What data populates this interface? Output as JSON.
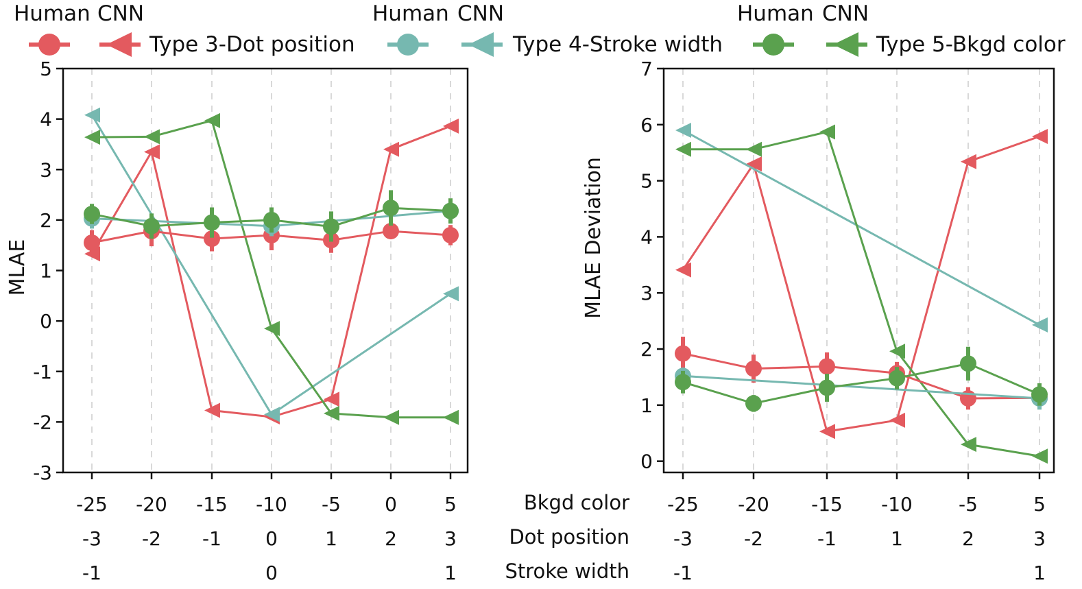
{
  "legend": {
    "groups": [
      {
        "human_label": "Human",
        "cnn_label": "CNN",
        "name": "Type 3-Dot position",
        "color": "#e35a5f"
      },
      {
        "human_label": "Human",
        "cnn_label": "CNN",
        "name": "Type 4-Stroke width",
        "color": "#76b8b0"
      },
      {
        "human_label": "Human",
        "cnn_label": "CNN",
        "name": "Type 5-Bkgd color",
        "color": "#5aa14e"
      }
    ]
  },
  "row_labels": {
    "bkgd": "Bkgd color",
    "dot": "Dot position",
    "stroke": "Stroke width"
  },
  "chart_data": [
    {
      "type": "line",
      "ylabel": "MLAE",
      "ylim": [
        -3,
        5
      ],
      "yticks": [
        "5",
        "4",
        "3",
        "2",
        "1",
        "0",
        "-1",
        "-2",
        "-3"
      ],
      "xticks_bkgd": [
        "-25",
        "-20",
        "-15",
        "-10",
        "-5",
        "0",
        "5"
      ],
      "xticks_dot": [
        "-3",
        "-2",
        "-1",
        "0",
        "1",
        "2",
        "3"
      ],
      "xticks_stroke": [
        "-1",
        "",
        "",
        "0",
        "",
        "",
        "1"
      ],
      "grid": "vertical dashed",
      "series": [
        {
          "name": "Type 3-Dot position",
          "source": "Human",
          "color": "#e35a5f",
          "x": [
            -3,
            -2,
            -1,
            0,
            1,
            2,
            3
          ],
          "y": [
            1.55,
            1.78,
            1.63,
            1.7,
            1.6,
            1.78,
            1.7
          ],
          "err": [
            0.25,
            0.3,
            0.25,
            0.3,
            0.25,
            0.1,
            0.2
          ]
        },
        {
          "name": "Type 4-Stroke width",
          "source": "Human",
          "color": "#76b8b0",
          "x": [
            -3,
            0,
            3
          ],
          "y": [
            2.03,
            1.88,
            2.18
          ],
          "err": [
            0.2,
            0.2,
            0.2
          ]
        },
        {
          "name": "Type 5-Bkgd color",
          "source": "Human",
          "color": "#5aa14e",
          "x": [
            -3,
            -2,
            -1,
            0,
            1,
            2,
            3
          ],
          "y": [
            2.12,
            1.88,
            1.95,
            2.0,
            1.87,
            2.24,
            2.18
          ],
          "err": [
            0.2,
            0.25,
            0.3,
            0.25,
            0.3,
            0.35,
            0.25
          ]
        },
        {
          "name": "Type 3-Dot position",
          "source": "CNN",
          "color": "#e35a5f",
          "x": [
            -3,
            -2,
            -1,
            0,
            1,
            2,
            3
          ],
          "y": [
            1.33,
            3.35,
            -1.77,
            -1.9,
            -1.55,
            3.4,
            3.86
          ]
        },
        {
          "name": "Type 4-Stroke width",
          "source": "CNN",
          "color": "#76b8b0",
          "x": [
            -3,
            0,
            3
          ],
          "y": [
            4.08,
            -1.85,
            0.54
          ]
        },
        {
          "name": "Type 5-Bkgd color",
          "source": "CNN",
          "color": "#5aa14e",
          "x": [
            -3,
            -2,
            -1,
            0,
            1,
            2,
            3
          ],
          "y": [
            3.64,
            3.65,
            3.97,
            -0.15,
            -1.83,
            -1.91,
            -1.91
          ]
        }
      ]
    },
    {
      "type": "line",
      "ylabel": "MLAE Deviation",
      "ylim": [
        -0.2,
        7
      ],
      "yticks": [
        "7",
        "6",
        "5",
        "4",
        "3",
        "2",
        "1",
        "0"
      ],
      "xticks_bkgd": [
        "-25",
        "-20",
        "-15",
        "-10",
        "-5",
        "5"
      ],
      "xticks_dot": [
        "-3",
        "-2",
        "-1",
        "1",
        "2",
        "3"
      ],
      "xticks_stroke": [
        "-1",
        "",
        "",
        "",
        "",
        "1"
      ],
      "grid": "vertical dashed",
      "series": [
        {
          "name": "Type 3-Dot position",
          "source": "Human",
          "color": "#e35a5f",
          "x": [
            -3,
            -2,
            -1,
            1,
            2,
            3
          ],
          "y": [
            1.92,
            1.65,
            1.69,
            1.57,
            1.12,
            1.13
          ],
          "err": [
            0.3,
            0.25,
            0.25,
            0.2,
            0.2,
            0.15
          ]
        },
        {
          "name": "Type 4-Stroke width",
          "source": "Human",
          "color": "#76b8b0",
          "x": [
            -3,
            3
          ],
          "y": [
            1.52,
            1.12
          ],
          "err": [
            0.15,
            0.2
          ]
        },
        {
          "name": "Type 5-Bkgd color",
          "source": "Human",
          "color": "#5aa14e",
          "x": [
            -3,
            -2,
            -1,
            1,
            2,
            3
          ],
          "y": [
            1.41,
            1.03,
            1.31,
            1.48,
            1.74,
            1.19
          ],
          "err": [
            0.2,
            0.15,
            0.25,
            0.2,
            0.3,
            0.2
          ]
        },
        {
          "name": "Type 3-Dot position",
          "source": "CNN",
          "color": "#e35a5f",
          "x": [
            -3,
            -2,
            -1,
            1,
            2,
            3
          ],
          "y": [
            3.41,
            5.3,
            0.53,
            0.73,
            5.34,
            5.79
          ]
        },
        {
          "name": "Type 4-Stroke width",
          "source": "CNN",
          "color": "#76b8b0",
          "x": [
            -3,
            3
          ],
          "y": [
            5.9,
            2.43
          ]
        },
        {
          "name": "Type 5-Bkgd color",
          "source": "CNN",
          "color": "#5aa14e",
          "x": [
            -3,
            -2,
            -1,
            1,
            2,
            3
          ],
          "y": [
            5.56,
            5.56,
            5.87,
            1.96,
            0.3,
            0.09
          ]
        }
      ]
    }
  ]
}
